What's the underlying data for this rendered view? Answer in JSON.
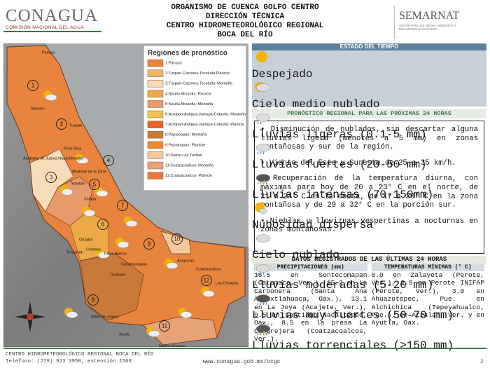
{
  "header": {
    "logo_left": "CONAGUA",
    "logo_left_sub": "COMISIÓN NACIONAL DEL AGUA",
    "title_lines": [
      "ORGANISMO DE CUENCA GOLFO CENTRO",
      "DIRECCIÓN TÉCNICA",
      "CENTRO HIDROMETEOROLÓGICO REGIONAL",
      "BOCA DEL RÍO"
    ],
    "logo_right": "SEMARNAT",
    "logo_right_sub": "SECRETARÍA DE MEDIO AMBIENTE Y RECURSOS NATURALES"
  },
  "map": {
    "legend_title": "Regiones de pronóstico",
    "legend": [
      {
        "label": "1:Pánuco",
        "color": "#e8843e"
      },
      {
        "label": "2:Tuxpan-Cazones-Tecolutla:Planicie",
        "color": "#f2b36a"
      },
      {
        "label": "3:Tuxpan-Cazones-Tecolutla: Montaña",
        "color": "#f6dcb8"
      },
      {
        "label": "4:Nautla-Misantla: Planicie",
        "color": "#f0a44c"
      },
      {
        "label": "5:Nautla-Misantla: Montaña",
        "color": "#e89a6a"
      },
      {
        "label": "6:Actopan-Antigua-Jamapa-Cotaxtla: Montaña",
        "color": "#f0c24e"
      },
      {
        "label": "7:Actopan-Antigua-Jamapa-Cotaxtla: Planicie",
        "color": "#e8632a"
      },
      {
        "label": "8:Papaloapan: Montaña",
        "color": "#c97a3a"
      },
      {
        "label": "9:Papaloapan: Planicie",
        "color": "#f08a2a"
      },
      {
        "label": "10:Sierra Los Tuxtlas",
        "color": "#f4c89a"
      },
      {
        "label": "11:Coatzacoalcos: Montaña",
        "color": "#e8a278"
      },
      {
        "label": "12:Coatzacoalcos: Planicie",
        "color": "#e8783e"
      }
    ],
    "regions": [
      "1",
      "2",
      "3",
      "4",
      "5",
      "6",
      "7",
      "8",
      "9",
      "10",
      "11",
      "12"
    ],
    "places": [
      "Pánuco",
      "Tampico",
      "Tuxpan",
      "Poza Rica",
      "Acatepec de Juárez Huauchinango",
      "Martínez de la Torre",
      "Teziutlán",
      "Xalapa",
      "Orizaba",
      "Córdoba",
      "Tehuacán",
      "Tierra Blanca",
      "Cosamaloapan",
      "Tuxtepec",
      "Acayucan",
      "Coatzacoalcos",
      "Las Choapas",
      "Ixtlán de Juárez",
      "Ayutla",
      "Matías Romero"
    ]
  },
  "weather": {
    "title": "ESTADO DEL TIEMPO",
    "icons": [
      "Despejado",
      "Cielo medio nublado",
      "Lluvias ligeras (0.1-5 mm)",
      "Lluvias fuertes (20-50 mm)",
      "Lluvias intensas (70-150mm)",
      "Nubosidad dispersa",
      "Cielo nublado",
      "Lluvias moderadas (5-20 mm)",
      "Lluvias muy fuertes (50-70 mm)",
      "Lluvias torrenciales (>150 mm)"
    ]
  },
  "forecast": {
    "title": "PRONÓSTICO REGIONAL PARA LAS PRÓXIMAS 24 HORAS",
    "bullets": [
      "Disminución de nublados, sin descartar alguna lluvias ligera (menores a 5 mm) en zonas montañosas y sur de la región.",
      "Viento del Este y Sureste de 25 a 35 km/h.",
      "Recuperación de la temperatura diurna, con máximas para hoy de 20 a 23° C en el norte, de 21 a 24° C en la costa, de 17 a 20° C en la zona montañosa y de 29 a 32° C en la porción sur.",
      "Nieblas y lloviznas vespertinas a nocturnas en zonas montañosas."
    ]
  },
  "records": {
    "title": "DATOS REGISTRADOS DE LAS ÚLTIMAS 24 HORAS",
    "columns": [
      {
        "header": "PRECIPITACIONES (mm)",
        "text": "16.5 en Sontecomapan (Catemaco, Ver.), 15.2 en La Carbonera (Santa Ana Ateixtlahuaca, Oax.), 13.1 en La Joya (Acajete, Ver.), 9.5 en Santiago Nacaltepec, Oax., 8.5 en la presa La Cangrejera (Coatzacoalcos, Ver.)."
      },
      {
        "header": "TEMPERATURAS MÍNIMAS (° C)",
        "text": "0.0 en Zalayeta (Perote, Ver.), 2.9 en Perote INIFAP (Perote, Ver.), 3.0 en Ahuazotepec, Pue. en Alchichica (Tepeyahualco, Pue.), en Atzalan, Ver. y en Ayutla, Oax."
      }
    ]
  },
  "footer": {
    "org": "CENTRO HIDROMETEOROLÓGICO REGIONAL BOCA DEL RÍO",
    "phone": "Teléfono: (229) 923 3950, extensión 1568",
    "url": "www.conagua.gob.mx/ocgc",
    "page": "2"
  }
}
